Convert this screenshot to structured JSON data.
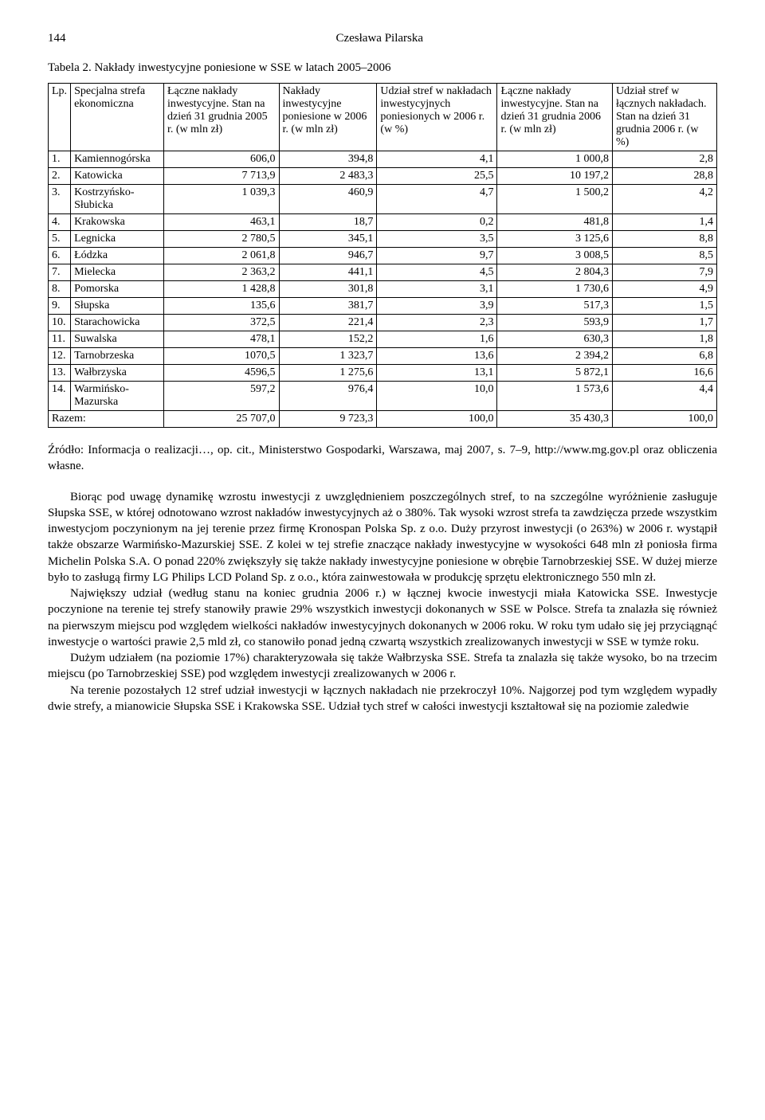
{
  "header": {
    "page_number": "144",
    "author": "Czesława Pilarska"
  },
  "table": {
    "caption": "Tabela 2. Nakłady inwestycyjne poniesione w SSE w latach 2005–2006",
    "columns": {
      "c0": "Lp.",
      "c1": "Specjalna strefa ekonomiczna",
      "c2": "Łączne nakłady inwestycyjne. Stan na dzień 31 grudnia 2005 r. (w mln zł)",
      "c3": "Nakłady inwestycyjne poniesione w 2006 r. (w mln zł)",
      "c4": "Udział stref w nakładach inwestycyjnych poniesionych w 2006 r. (w %)",
      "c5": "Łączne nakłady inwestycyjne. Stan na dzień 31 grudnia 2006 r. (w mln zł)",
      "c6": "Udział stref w łącznych nakładach. Stan na dzień 31 grudnia 2006 r. (w %)"
    },
    "rows": [
      {
        "n": "1.",
        "name": "Kamiennogórska",
        "a": "606,0",
        "b": "394,8",
        "c": "4,1",
        "d": "1 000,8",
        "e": "2,8"
      },
      {
        "n": "2.",
        "name": "Katowicka",
        "a": "7 713,9",
        "b": "2 483,3",
        "c": "25,5",
        "d": "10 197,2",
        "e": "28,8"
      },
      {
        "n": "3.",
        "name": "Kostrzyńsko-Słubicka",
        "a": "1 039,3",
        "b": "460,9",
        "c": "4,7",
        "d": "1 500,2",
        "e": "4,2"
      },
      {
        "n": "4.",
        "name": "Krakowska",
        "a": "463,1",
        "b": "18,7",
        "c": "0,2",
        "d": "481,8",
        "e": "1,4"
      },
      {
        "n": "5.",
        "name": "Legnicka",
        "a": "2 780,5",
        "b": "345,1",
        "c": "3,5",
        "d": "3 125,6",
        "e": "8,8"
      },
      {
        "n": "6.",
        "name": "Łódzka",
        "a": "2 061,8",
        "b": "946,7",
        "c": "9,7",
        "d": "3 008,5",
        "e": "8,5"
      },
      {
        "n": "7.",
        "name": "Mielecka",
        "a": "2 363,2",
        "b": "441,1",
        "c": "4,5",
        "d": "2 804,3",
        "e": "7,9"
      },
      {
        "n": "8.",
        "name": "Pomorska",
        "a": "1 428,8",
        "b": "301,8",
        "c": "3,1",
        "d": "1 730,6",
        "e": "4,9"
      },
      {
        "n": "9.",
        "name": "Słupska",
        "a": "135,6",
        "b": "381,7",
        "c": "3,9",
        "d": "517,3",
        "e": "1,5"
      },
      {
        "n": "10.",
        "name": "Starachowicka",
        "a": "372,5",
        "b": "221,4",
        "c": "2,3",
        "d": "593,9",
        "e": "1,7"
      },
      {
        "n": "11.",
        "name": "Suwalska",
        "a": "478,1",
        "b": "152,2",
        "c": "1,6",
        "d": "630,3",
        "e": "1,8"
      },
      {
        "n": "12.",
        "name": "Tarnobrzeska",
        "a": "1070,5",
        "b": "1 323,7",
        "c": "13,6",
        "d": "2 394,2",
        "e": "6,8"
      },
      {
        "n": "13.",
        "name": "Wałbrzyska",
        "a": "4596,5",
        "b": "1 275,6",
        "c": "13,1",
        "d": "5 872,1",
        "e": "16,6"
      },
      {
        "n": "14.",
        "name": "Warmińsko-Mazurska",
        "a": "597,2",
        "b": "976,4",
        "c": "10,0",
        "d": "1 573,6",
        "e": "4,4"
      }
    ],
    "total": {
      "label": "Razem:",
      "a": "25 707,0",
      "b": "9 723,3",
      "c": "100,0",
      "d": "35 430,3",
      "e": "100,0"
    }
  },
  "source": "Źródło: Informacja o realizacji…, op. cit., Ministerstwo Gospodarki, Warszawa, maj 2007, s. 7–9, http://www.mg.gov.pl oraz obliczenia własne.",
  "paragraphs": {
    "p1": "Biorąc pod uwagę dynamikę wzrostu inwestycji z uwzględnieniem poszczególnych stref, to na szczególne wyróżnienie zasługuje Słupska SSE, w której odnotowano wzrost nakładów inwestycyjnych aż o 380%. Tak wysoki wzrost strefa ta zawdzięcza przede wszystkim inwestycjom poczynionym na jej terenie przez firmę Kronospan Polska Sp. z o.o. Duży przyrost inwestycji (o 263%) w 2006 r. wystąpił także obszarze Warmińsko-Mazurskiej SSE. Z kolei w tej strefie znaczące nakłady inwestycyjne w wysokości 648 mln zł poniosła firma Michelin Polska S.A. O ponad 220% zwiększyły się także nakłady inwestycyjne poniesione w obrębie Tarnobrzeskiej SSE. W dużej mierze było to zasługą firmy LG Philips LCD Poland Sp. z o.o., która zainwestowała w produkcję sprzętu elektronicznego 550 mln zł.",
    "p2": "Największy udział (według stanu na koniec grudnia 2006 r.) w łącznej kwocie inwestycji miała Katowicka SSE. Inwestycje poczynione na terenie tej strefy stanowiły prawie 29% wszystkich inwestycji dokonanych w SSE w Polsce. Strefa ta znalazła się również na pierwszym miejscu pod względem wielkości nakładów inwestycyjnych dokonanych w 2006 roku. W roku tym udało się jej przyciągnąć inwestycje o wartości prawie 2,5 mld zł, co stanowiło ponad jedną czwartą wszystkich zrealizowanych inwestycji w SSE w tymże roku.",
    "p3": "Dużym udziałem (na poziomie 17%) charakteryzowała się także Wałbrzyska SSE. Strefa ta znalazła się także wysoko, bo na trzecim miejscu (po Tarnobrzeskiej SSE) pod względem inwestycji zrealizowanych w 2006 r.",
    "p4": "Na terenie pozostałych 12 stref udział inwestycji w łącznych nakładach nie przekroczył 10%. Najgorzej pod tym względem wypadły dwie strefy, a mianowicie Słupska SSE i Krakowska SSE. Udział tych stref w całości inwestycji kształtował się na poziomie zaledwie"
  }
}
